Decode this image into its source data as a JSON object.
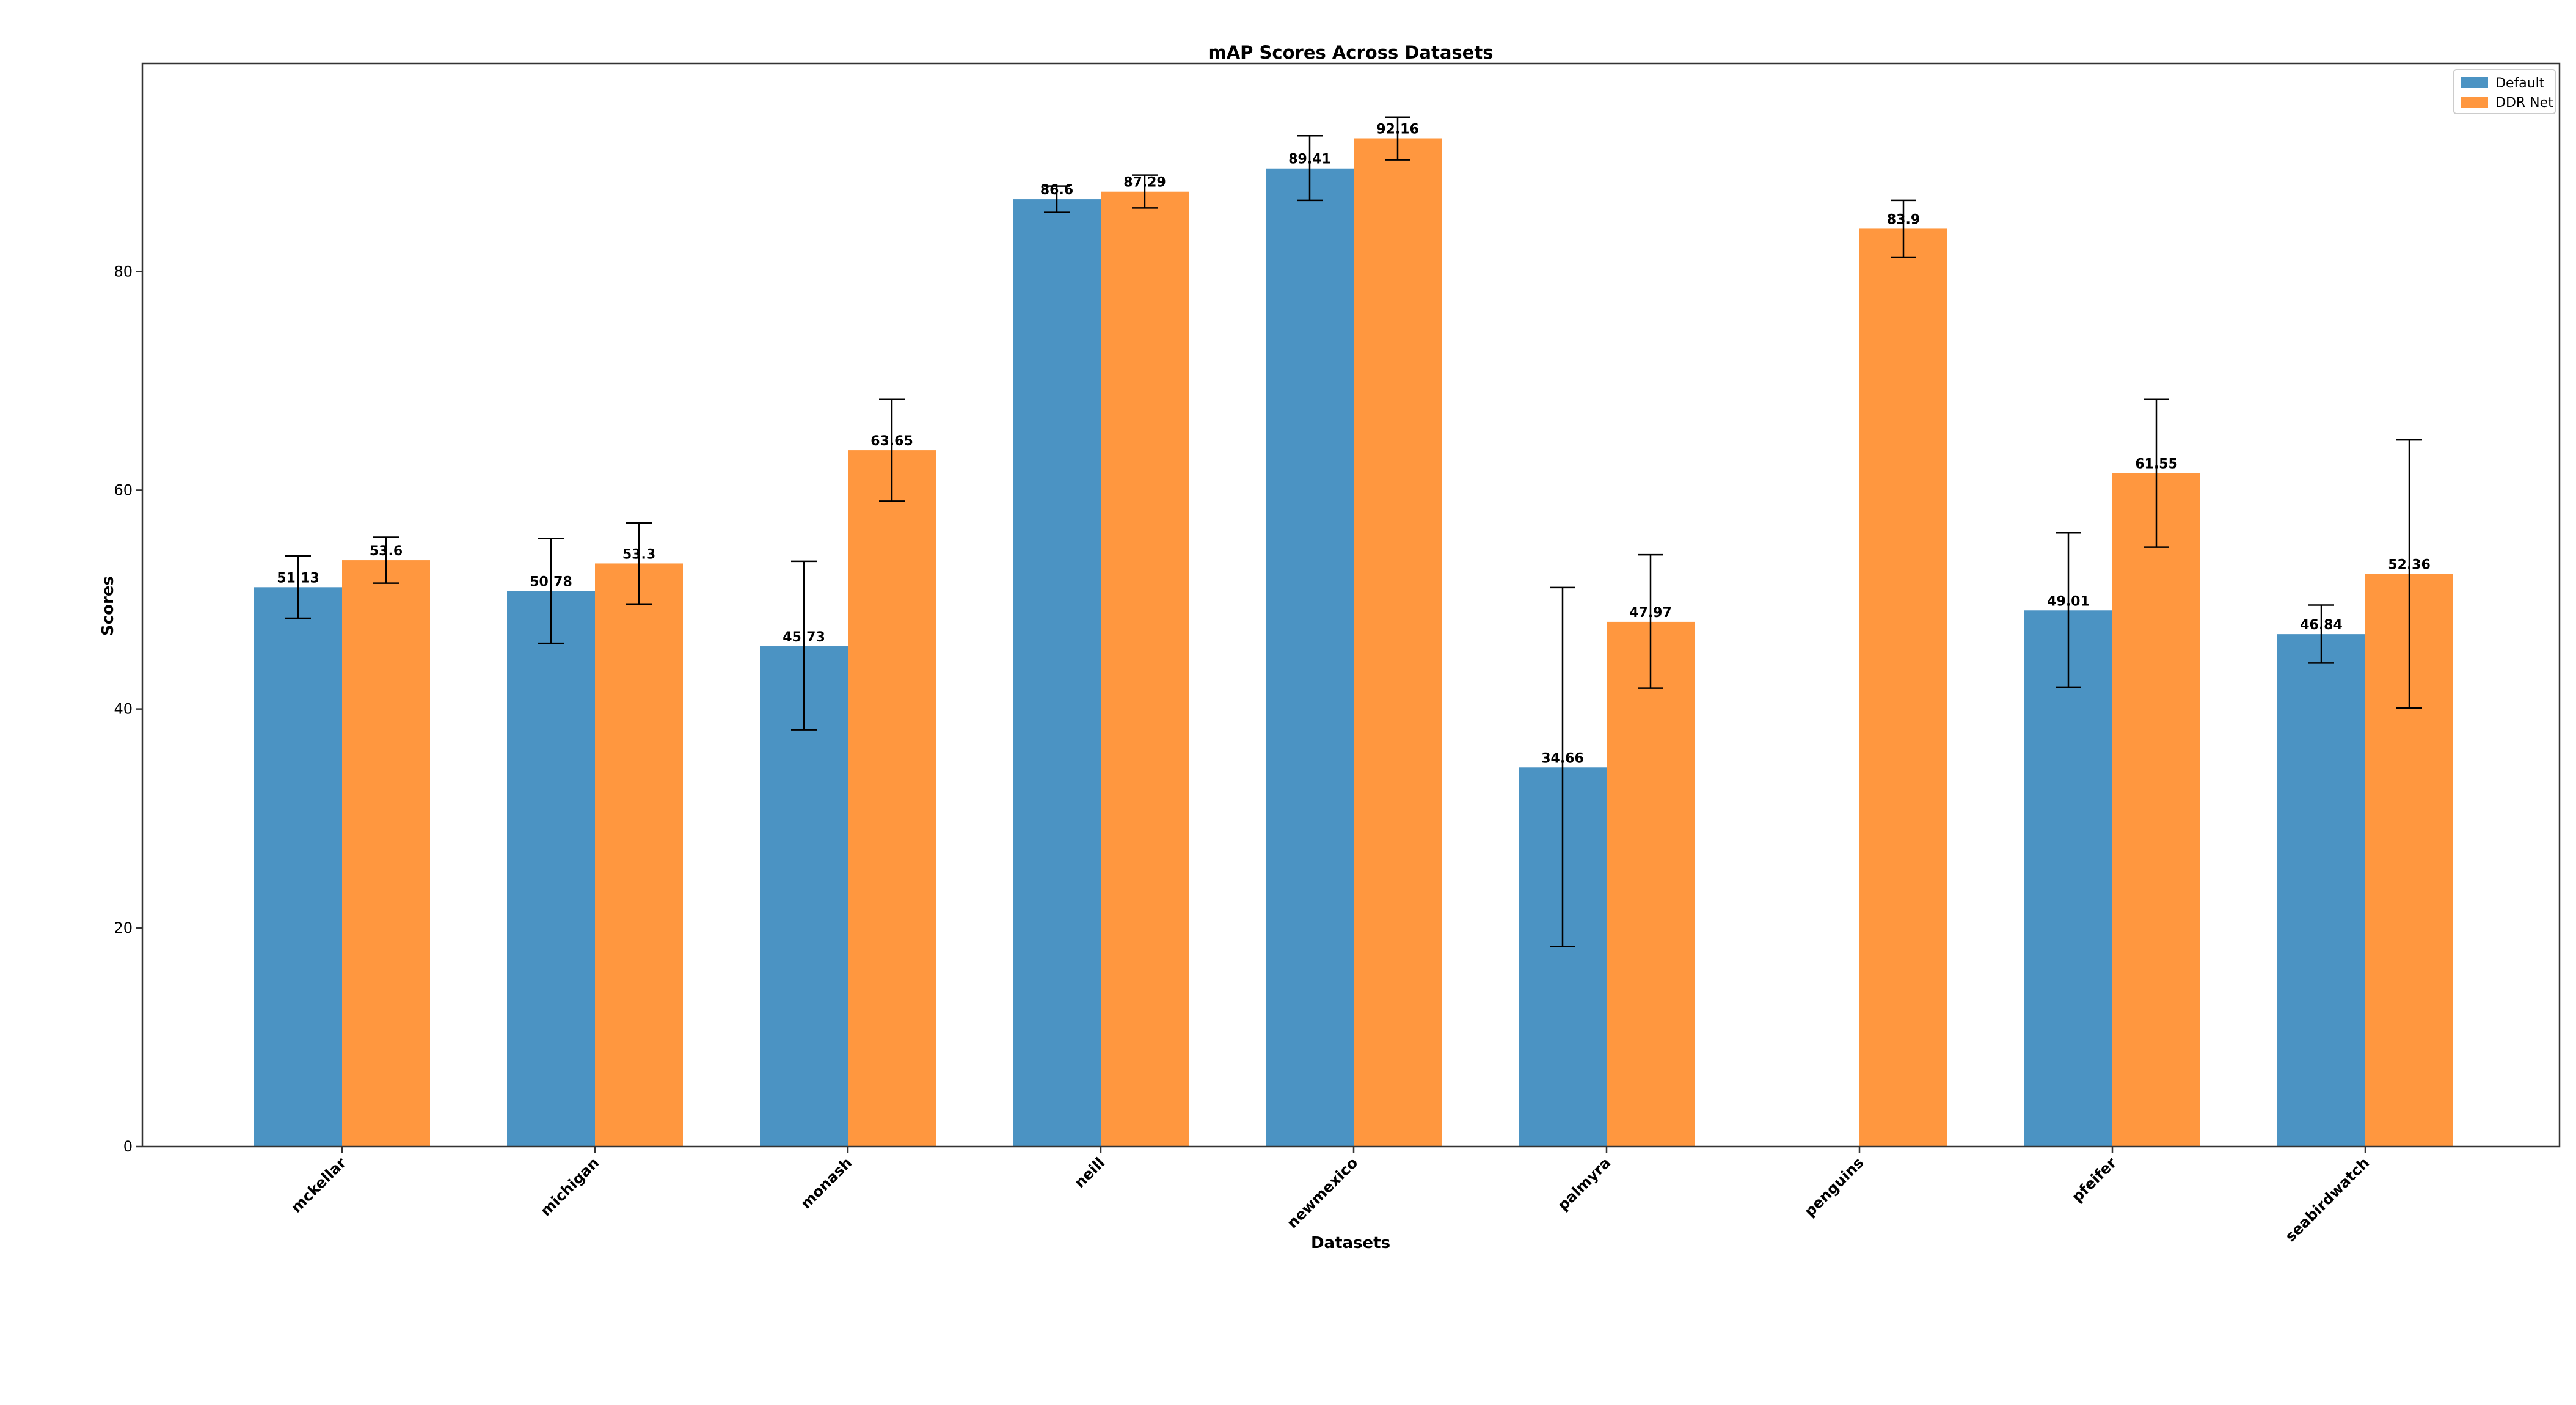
{
  "chart_data": {
    "type": "bar",
    "title": "mAP Scores Across Datasets",
    "xlabel": "Datasets",
    "ylabel": "Scores",
    "ylim": [
      0,
      99
    ],
    "yticks": [
      0,
      20,
      40,
      60,
      80
    ],
    "grid": false,
    "legend_position": "top-right",
    "categories": [
      "mckellar",
      "michigan",
      "monash",
      "neill",
      "newmexico",
      "palmyra",
      "penguins",
      "pfeifer",
      "seabirdwatch"
    ],
    "series": [
      {
        "name": "Default",
        "color": "#4b93c3",
        "values": [
          51.13,
          50.78,
          45.73,
          86.6,
          89.41,
          34.66,
          null,
          49.01,
          46.84
        ],
        "labels": [
          "51.13",
          "50.78",
          "45.73",
          "86.6",
          "89.41",
          "34.66",
          "",
          "49.01",
          "46.84"
        ],
        "error_low": [
          48.3,
          46.0,
          38.1,
          85.4,
          86.5,
          18.3,
          null,
          42.0,
          44.2
        ],
        "error_high": [
          54.0,
          55.6,
          53.5,
          87.8,
          92.4,
          51.1,
          null,
          56.1,
          49.5
        ]
      },
      {
        "name": "DDR Net",
        "color": "#ff973f",
        "values": [
          53.6,
          53.3,
          63.65,
          87.29,
          92.16,
          47.97,
          83.9,
          61.55,
          52.36
        ],
        "labels": [
          "53.6",
          "53.3",
          "63.65",
          "87.29",
          "92.16",
          "47.97",
          "83.9",
          "61.55",
          "52.36"
        ],
        "error_low": [
          51.5,
          49.6,
          59.0,
          85.8,
          90.2,
          41.9,
          81.3,
          54.8,
          40.1
        ],
        "error_high": [
          55.7,
          57.0,
          68.3,
          88.8,
          94.1,
          54.1,
          86.5,
          68.3,
          64.6
        ]
      }
    ]
  }
}
